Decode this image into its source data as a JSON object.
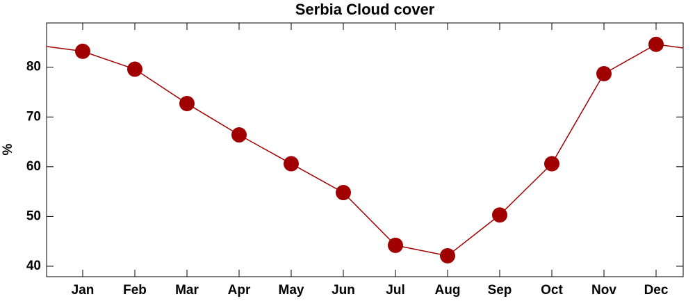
{
  "chart_data": {
    "type": "line",
    "title": "Serbia Cloud cover",
    "y_label": "%",
    "categories": [
      "Jan",
      "Feb",
      "Mar",
      "Apr",
      "May",
      "Jun",
      "Jul",
      "Aug",
      "Sep",
      "Oct",
      "Nov",
      "Dec"
    ],
    "series": [
      {
        "name": "Cloud cover",
        "color": "#a00000",
        "values": [
          83.2,
          79.6,
          72.7,
          66.4,
          60.6,
          54.8,
          44.2,
          42.1,
          50.3,
          60.6,
          78.7,
          84.6
        ]
      }
    ],
    "ylim": [
      37.9,
      88.9
    ],
    "yticks": [
      40,
      50,
      60,
      70,
      80
    ]
  }
}
